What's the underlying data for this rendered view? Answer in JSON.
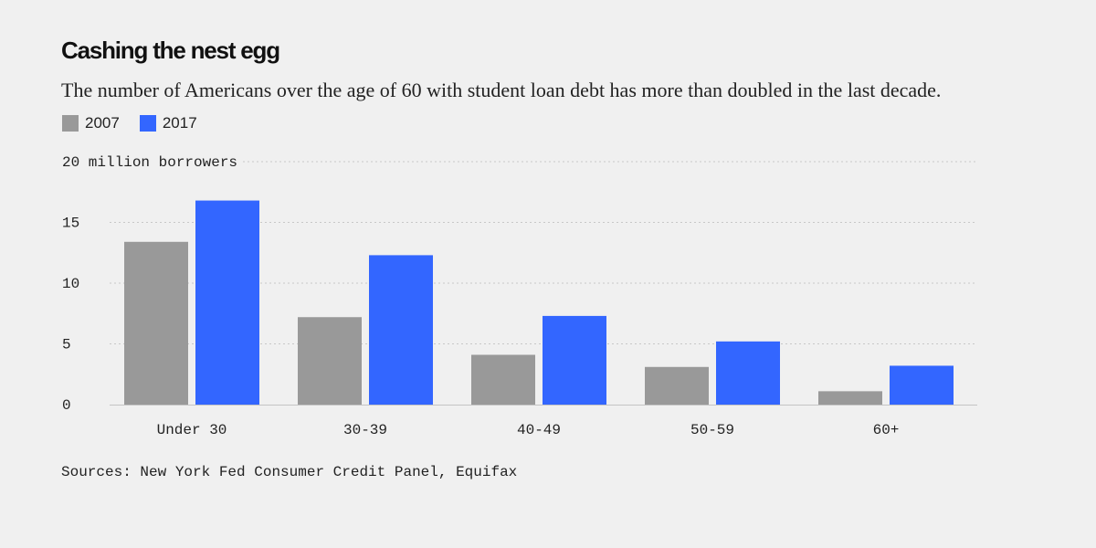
{
  "header": {
    "title": "Cashing the nest egg",
    "subtitle": "The number of Americans over the age of 60 with student loan debt has more than doubled in the last decade."
  },
  "legend": [
    {
      "label": "2007",
      "color": "#999999"
    },
    {
      "label": "2017",
      "color": "#3366ff"
    }
  ],
  "footer": {
    "source": "Sources: New York Fed Consumer Credit Panel, Equifax"
  },
  "chart_data": {
    "type": "bar",
    "categories": [
      "Under 30",
      "30-39",
      "40-49",
      "50-59",
      "60+"
    ],
    "series": [
      {
        "name": "2007",
        "values": [
          13.4,
          7.2,
          4.1,
          3.1,
          1.1
        ],
        "color": "#999999"
      },
      {
        "name": "2017",
        "values": [
          16.8,
          12.3,
          7.3,
          5.2,
          3.2
        ],
        "color": "#3366ff"
      }
    ],
    "yticks": [
      0,
      5,
      10,
      15,
      20
    ],
    "ytick_labels": [
      "0",
      "5",
      "10",
      "15",
      "20 million borrowers"
    ],
    "ylim": [
      0,
      20
    ],
    "grid": true,
    "legend_position": "top-left"
  }
}
